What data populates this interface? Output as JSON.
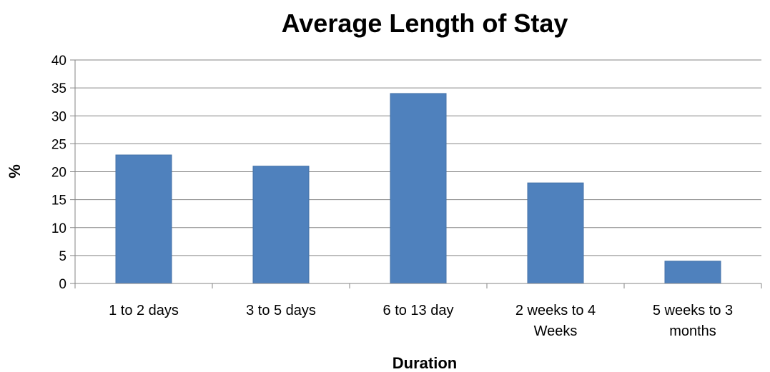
{
  "chart_data": {
    "type": "bar",
    "title": "Average Length of Stay",
    "xlabel": "Duration",
    "ylabel": "%",
    "categories": [
      [
        "1 to 2 days"
      ],
      [
        "3 to 5 days"
      ],
      [
        "6 to 13 day"
      ],
      [
        "2 weeks to 4",
        "Weeks"
      ],
      [
        "5 weeks to 3",
        "months"
      ]
    ],
    "values": [
      23,
      21,
      34,
      18,
      4
    ],
    "ylim": [
      0,
      40
    ],
    "yticks": [
      0,
      5,
      10,
      15,
      20,
      25,
      30,
      35,
      40
    ],
    "grid": true,
    "legend": "none",
    "bar_color": "#4f81bd"
  }
}
